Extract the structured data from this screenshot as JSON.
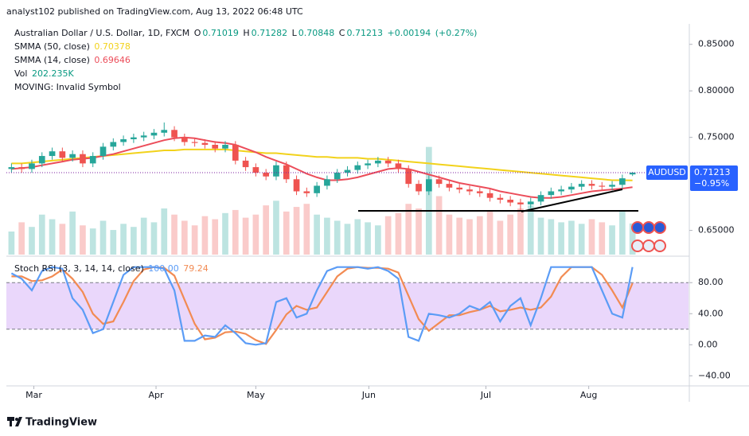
{
  "chart_data": {
    "type": "candlestick",
    "publisher_line": "analyst102 published on TradingView.com, Aug 13, 2022 06:48 UTC",
    "symbol_title": "Australian Dollar / U.S. Dollar, 1D, FXCM",
    "ohlc_letters": [
      "O",
      "H",
      "L",
      "C"
    ],
    "change": {
      "value": 0.00194,
      "label": "+0.00194"
    },
    "change_pct": {
      "value": 0.27,
      "label": "(+0.27%)"
    },
    "moving_note": "MOVING: Invalid Symbol",
    "price_tag": {
      "symbol": "AUDUSD",
      "change_pct": {
        "value": -0.95,
        "label": "−0.95%"
      }
    },
    "up_color": "#26a69a",
    "down_color": "#ef5350",
    "xlim": [
      -0.5,
      66.5
    ],
    "xticks": [
      {
        "value": 2.2,
        "label": "Mar"
      },
      {
        "value": 14.2,
        "label": "Apr"
      },
      {
        "value": 24,
        "label": "May"
      },
      {
        "value": 35.1,
        "label": "Jun"
      },
      {
        "value": 46.6,
        "label": "Jul"
      },
      {
        "value": 56.7,
        "label": "Aug"
      }
    ],
    "ylim": [
      0.624,
      0.872
    ],
    "yticks": [
      {
        "value": 0.85,
        "label": "0.85000"
      },
      {
        "value": 0.8,
        "label": "0.80000"
      },
      {
        "value": 0.75,
        "label": "0.75000"
      },
      {
        "value": 0.65,
        "label": "0.65000"
      }
    ],
    "open": [
      0.716,
      0.718,
      0.716,
      0.722,
      0.73,
      0.735,
      0.728,
      0.732,
      0.722,
      0.73,
      0.74,
      0.745,
      0.748,
      0.75,
      0.752,
      0.755,
      0.758,
      0.75,
      0.745,
      0.744,
      0.742,
      0.738,
      0.742,
      0.725,
      0.718,
      0.712,
      0.708,
      0.72,
      0.705,
      0.692,
      0.69,
      0.698,
      0.705,
      0.712,
      0.715,
      0.72,
      0.722,
      0.725,
      0.722,
      0.716,
      0.7,
      0.692,
      0.705,
      0.7,
      0.696,
      0.694,
      0.692,
      0.69,
      0.685,
      0.683,
      0.68,
      0.678,
      0.681,
      0.688,
      0.692,
      0.694,
      0.697,
      0.7,
      0.698,
      0.697,
      0.699,
      0.71019
    ],
    "high": [
      0.722,
      0.722,
      0.726,
      0.734,
      0.739,
      0.739,
      0.736,
      0.736,
      0.734,
      0.744,
      0.749,
      0.752,
      0.754,
      0.756,
      0.759,
      0.766,
      0.762,
      0.754,
      0.749,
      0.748,
      0.746,
      0.746,
      0.746,
      0.729,
      0.722,
      0.716,
      0.724,
      0.724,
      0.709,
      0.696,
      0.702,
      0.709,
      0.716,
      0.719,
      0.724,
      0.726,
      0.729,
      0.729,
      0.726,
      0.72,
      0.704,
      0.709,
      0.709,
      0.704,
      0.7,
      0.698,
      0.696,
      0.694,
      0.689,
      0.687,
      0.684,
      0.685,
      0.692,
      0.696,
      0.698,
      0.701,
      0.704,
      0.704,
      0.702,
      0.703,
      0.71,
      0.71282
    ],
    "low": [
      0.712,
      0.712,
      0.712,
      0.718,
      0.726,
      0.724,
      0.724,
      0.718,
      0.718,
      0.726,
      0.736,
      0.741,
      0.744,
      0.746,
      0.748,
      0.751,
      0.746,
      0.741,
      0.74,
      0.738,
      0.734,
      0.734,
      0.721,
      0.714,
      0.708,
      0.704,
      0.704,
      0.701,
      0.688,
      0.686,
      0.686,
      0.694,
      0.701,
      0.708,
      0.711,
      0.716,
      0.718,
      0.718,
      0.712,
      0.696,
      0.688,
      0.688,
      0.696,
      0.692,
      0.69,
      0.688,
      0.686,
      0.681,
      0.679,
      0.676,
      0.672,
      0.674,
      0.677,
      0.684,
      0.688,
      0.69,
      0.693,
      0.694,
      0.693,
      0.693,
      0.695,
      0.70848
    ],
    "close": [
      0.718,
      0.716,
      0.722,
      0.73,
      0.735,
      0.728,
      0.732,
      0.722,
      0.73,
      0.74,
      0.745,
      0.748,
      0.75,
      0.752,
      0.755,
      0.758,
      0.75,
      0.745,
      0.744,
      0.742,
      0.738,
      0.742,
      0.725,
      0.718,
      0.712,
      0.708,
      0.72,
      0.705,
      0.692,
      0.69,
      0.698,
      0.705,
      0.712,
      0.715,
      0.72,
      0.722,
      0.725,
      0.722,
      0.716,
      0.7,
      0.692,
      0.705,
      0.7,
      0.696,
      0.694,
      0.692,
      0.69,
      0.685,
      0.683,
      0.68,
      0.678,
      0.681,
      0.688,
      0.692,
      0.694,
      0.697,
      0.7,
      0.698,
      0.697,
      0.699,
      0.706,
      0.71213
    ],
    "series": [
      {
        "name": "SMMA (50, close)",
        "color": "#f2d21b",
        "values": [
          0.722,
          0.722,
          0.723,
          0.724,
          0.725,
          0.726,
          0.727,
          0.728,
          0.729,
          0.73,
          0.731,
          0.732,
          0.733,
          0.734,
          0.735,
          0.736,
          0.736,
          0.737,
          0.737,
          0.737,
          0.737,
          0.737,
          0.736,
          0.735,
          0.734,
          0.733,
          0.733,
          0.732,
          0.731,
          0.73,
          0.729,
          0.729,
          0.728,
          0.728,
          0.728,
          0.727,
          0.727,
          0.726,
          0.725,
          0.724,
          0.723,
          0.722,
          0.721,
          0.72,
          0.719,
          0.718,
          0.717,
          0.716,
          0.715,
          0.714,
          0.713,
          0.712,
          0.711,
          0.71,
          0.709,
          0.708,
          0.707,
          0.706,
          0.705,
          0.704,
          0.704,
          0.70378
        ]
      },
      {
        "name": "SMMA (14, close)",
        "color": "#ec4d5a",
        "values": [
          0.716,
          0.717,
          0.718,
          0.72,
          0.722,
          0.724,
          0.726,
          0.727,
          0.728,
          0.73,
          0.732,
          0.735,
          0.738,
          0.741,
          0.744,
          0.747,
          0.749,
          0.75,
          0.749,
          0.747,
          0.745,
          0.744,
          0.742,
          0.738,
          0.734,
          0.729,
          0.725,
          0.721,
          0.716,
          0.711,
          0.707,
          0.704,
          0.704,
          0.705,
          0.707,
          0.71,
          0.713,
          0.716,
          0.717,
          0.716,
          0.713,
          0.71,
          0.707,
          0.704,
          0.701,
          0.699,
          0.697,
          0.695,
          0.692,
          0.69,
          0.688,
          0.686,
          0.685,
          0.685,
          0.686,
          0.688,
          0.69,
          0.692,
          0.693,
          0.694,
          0.695,
          0.69646
        ]
      }
    ],
    "volume": {
      "name": "Vol",
      "last_value_label": "202.235K",
      "ylim": [
        0,
        1500000
      ],
      "values": [
        150000,
        210000,
        180000,
        260000,
        230000,
        200000,
        280000,
        190000,
        170000,
        220000,
        160000,
        200000,
        180000,
        240000,
        210000,
        300000,
        260000,
        220000,
        190000,
        250000,
        230000,
        270000,
        290000,
        240000,
        260000,
        320000,
        350000,
        280000,
        310000,
        330000,
        260000,
        240000,
        220000,
        200000,
        230000,
        210000,
        190000,
        250000,
        270000,
        330000,
        300000,
        700000,
        380000,
        260000,
        240000,
        230000,
        250000,
        280000,
        220000,
        260000,
        300000,
        320000,
        240000,
        230000,
        210000,
        220000,
        200000,
        230000,
        210000,
        190000,
        280000,
        202235
      ]
    },
    "stoch": {
      "title": "Stoch RSI (3, 3, 14, 14, close)",
      "ylim": [
        -53,
        111
      ],
      "band": [
        20,
        80
      ],
      "band_color": "#ead7fb",
      "yticks": [
        {
          "value": 80,
          "label": "80.00"
        },
        {
          "value": 40,
          "label": "40.00"
        },
        {
          "value": 0,
          "label": "0.00"
        },
        {
          "value": -40,
          "label": "−40.00"
        }
      ],
      "series": [
        {
          "name": "K",
          "color": "#5b9cf6",
          "last_value_label": "100.00",
          "values": [
            92,
            85,
            70,
            95,
            100,
            98,
            60,
            45,
            15,
            20,
            55,
            90,
            100,
            100,
            100,
            98,
            70,
            5,
            5,
            12,
            10,
            25,
            15,
            2,
            0,
            2,
            55,
            60,
            35,
            40,
            70,
            95,
            100,
            100,
            100,
            98,
            100,
            95,
            85,
            10,
            5,
            40,
            38,
            35,
            40,
            50,
            45,
            55,
            30,
            50,
            60,
            25,
            60,
            100,
            100,
            100,
            100,
            100,
            70,
            40,
            35,
            100
          ]
        },
        {
          "name": "D",
          "color": "#f28b53",
          "values": [
            88,
            88,
            82,
            83,
            88,
            97,
            85,
            68,
            40,
            27,
            30,
            55,
            82,
            97,
            100,
            99,
            89,
            58,
            27,
            7,
            9,
            16,
            17,
            14,
            6,
            1,
            19,
            39,
            50,
            45,
            48,
            68,
            88,
            98,
            100,
            99,
            99,
            98,
            93,
            63,
            33,
            18,
            28,
            38,
            38,
            42,
            45,
            50,
            43,
            45,
            48,
            45,
            48,
            62,
            87,
            100,
            100,
            100,
            90,
            70,
            48,
            79.24
          ]
        }
      ]
    },
    "brand": "TradingView"
  }
}
